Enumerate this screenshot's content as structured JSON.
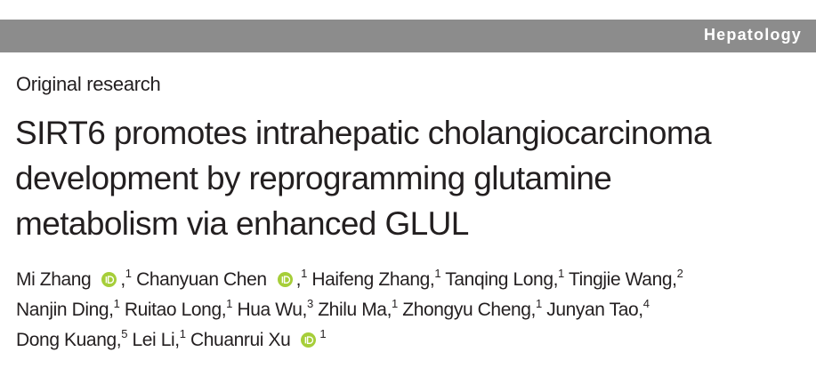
{
  "header": {
    "journal": "Hepatology"
  },
  "article_type": "Original research",
  "title_lines": [
    "SIRT6 promotes intrahepatic cholangiocarcinoma",
    "development by reprogramming glutamine",
    "metabolism via enhanced GLUL"
  ],
  "author_lines": [
    [
      {
        "name": "Mi Zhang",
        "orcid": true,
        "punct": ",",
        "affiliation": "1"
      },
      {
        "name": "Chanyuan Chen",
        "orcid": true,
        "punct": ",",
        "affiliation": "1"
      },
      {
        "name": "Haifeng Zhang,",
        "orcid": false,
        "affiliation": "1"
      },
      {
        "name": "Tanqing Long,",
        "orcid": false,
        "affiliation": "1"
      },
      {
        "name": "Tingjie Wang,",
        "orcid": false,
        "affiliation": "2"
      }
    ],
    [
      {
        "name": "Nanjin Ding,",
        "orcid": false,
        "affiliation": "1"
      },
      {
        "name": "Ruitao Long,",
        "orcid": false,
        "affiliation": "1"
      },
      {
        "name": "Hua Wu,",
        "orcid": false,
        "affiliation": "3"
      },
      {
        "name": "Zhilu Ma,",
        "orcid": false,
        "affiliation": "1"
      },
      {
        "name": "Zhongyu Cheng,",
        "orcid": false,
        "affiliation": "1"
      },
      {
        "name": "Junyan Tao,",
        "orcid": false,
        "affiliation": "4"
      }
    ],
    [
      {
        "name": "Dong Kuang,",
        "orcid": false,
        "affiliation": "5"
      },
      {
        "name": "Lei Li,",
        "orcid": false,
        "affiliation": "1"
      },
      {
        "name": "Chuanrui Xu",
        "orcid": true,
        "affiliation": "1"
      }
    ]
  ]
}
